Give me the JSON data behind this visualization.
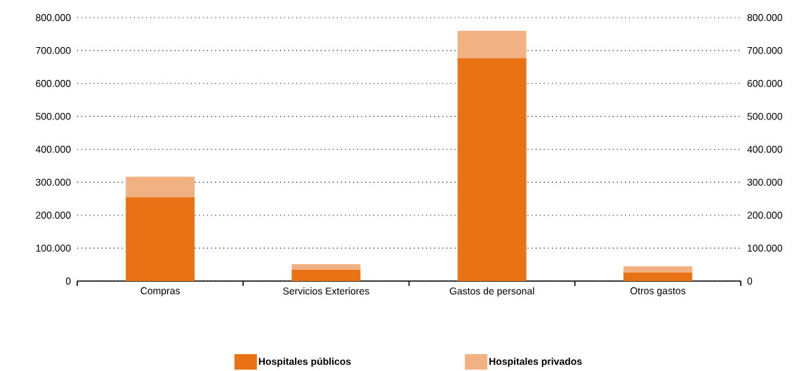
{
  "chart_data": {
    "type": "bar",
    "stacked": true,
    "categories": [
      "Compras",
      "Servicios Exteriores",
      "Gastos de personal",
      "Otros gastos"
    ],
    "series": [
      {
        "name": "Hospitales públicos",
        "color": "#e87214",
        "values": [
          255000,
          34000,
          677000,
          26000
        ]
      },
      {
        "name": "Hospitales privados",
        "color": "#f2b183",
        "values": [
          62000,
          17000,
          83000,
          19000
        ]
      }
    ],
    "ylim": [
      0,
      800000
    ],
    "yticks": [
      {
        "value": 0,
        "label": "0"
      },
      {
        "value": 100000,
        "label": "100.000"
      },
      {
        "value": 200000,
        "label": "200.000"
      },
      {
        "value": 300000,
        "label": "300.000"
      },
      {
        "value": 400000,
        "label": "400.000"
      },
      {
        "value": 500000,
        "label": "500.000"
      },
      {
        "value": 600000,
        "label": "600.000"
      },
      {
        "value": 700000,
        "label": "700.000"
      },
      {
        "value": 800000,
        "label": "800.000"
      }
    ],
    "y2lim": [
      0,
      800000
    ],
    "y2ticks": [
      {
        "value": 0,
        "label": "0"
      },
      {
        "value": 100000,
        "label": "100.000"
      },
      {
        "value": 200000,
        "label": "200.000"
      },
      {
        "value": 300000,
        "label": "300.000"
      },
      {
        "value": 400000,
        "label": "400.000"
      },
      {
        "value": 500000,
        "label": "500.000"
      },
      {
        "value": 600000,
        "label": "600.000"
      },
      {
        "value": 700000,
        "label": "700.000"
      },
      {
        "value": 800000,
        "label": "800.000"
      }
    ],
    "grid": "y",
    "legend": "bottom"
  }
}
